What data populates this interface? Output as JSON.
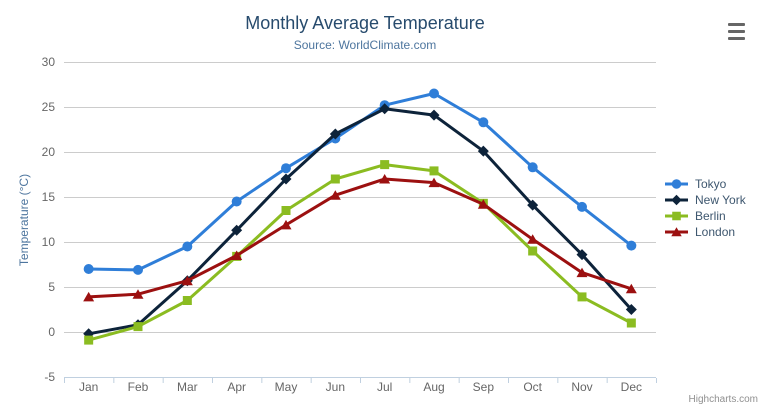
{
  "chart_data": {
    "type": "line",
    "title": "Monthly Average Temperature",
    "subtitle": "Source: WorldClimate.com",
    "xlabel": "",
    "ylabel": "Temperature (°C)",
    "categories": [
      "Jan",
      "Feb",
      "Mar",
      "Apr",
      "May",
      "Jun",
      "Jul",
      "Aug",
      "Sep",
      "Oct",
      "Nov",
      "Dec"
    ],
    "ylim": [
      -5,
      30
    ],
    "ytick_step": 5,
    "grid": true,
    "legend_position": "right",
    "series": [
      {
        "name": "Tokyo",
        "color": "#2f7ed8",
        "marker": "circle",
        "values": [
          7.0,
          6.9,
          9.5,
          14.5,
          18.2,
          21.5,
          25.2,
          26.5,
          23.3,
          18.3,
          13.9,
          9.6
        ]
      },
      {
        "name": "New York",
        "color": "#0d233a",
        "marker": "diamond",
        "values": [
          -0.2,
          0.8,
          5.7,
          11.3,
          17.0,
          22.0,
          24.8,
          24.1,
          20.1,
          14.1,
          8.6,
          2.5
        ]
      },
      {
        "name": "Berlin",
        "color": "#8bbc21",
        "marker": "square",
        "values": [
          -0.9,
          0.6,
          3.5,
          8.4,
          13.5,
          17.0,
          18.6,
          17.9,
          14.3,
          9.0,
          3.9,
          1.0
        ]
      },
      {
        "name": "London",
        "color": "#9c1010",
        "marker": "triangle",
        "values": [
          3.9,
          4.2,
          5.7,
          8.5,
          11.9,
          15.2,
          17.0,
          16.6,
          14.2,
          10.3,
          6.6,
          4.8
        ]
      }
    ]
  },
  "credits": "Highcharts.com",
  "icons": {
    "export_menu": "hamburger-icon"
  },
  "colors": {
    "title": "#274b6d",
    "subtitle": "#4d759e",
    "axis_label": "#666666",
    "grid": "#cccccc",
    "axis_line": "#c0d0e0",
    "legend_text": "#3E576F"
  }
}
